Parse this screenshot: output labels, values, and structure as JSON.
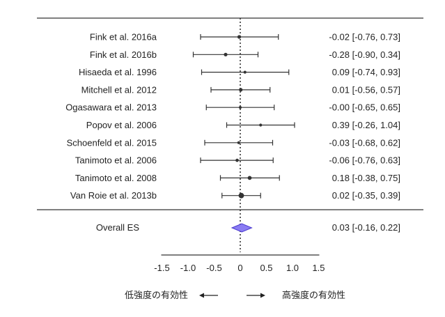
{
  "chart_data": {
    "type": "forest",
    "studies": [
      {
        "label": "Fink et al. 2016a",
        "es": -0.02,
        "lo": -0.76,
        "hi": 0.73,
        "ci_text": "-0.02 [-0.76, 0.73]",
        "weight": 1.0
      },
      {
        "label": "Fink et al. 2016b",
        "es": -0.28,
        "lo": -0.9,
        "hi": 0.34,
        "ci_text": "-0.28 [-0.90, 0.34]",
        "weight": 1.0
      },
      {
        "label": "Hisaeda et al. 1996",
        "es": 0.09,
        "lo": -0.74,
        "hi": 0.93,
        "ci_text": "0.09 [-0.74, 0.93]",
        "weight": 0.8
      },
      {
        "label": "Mitchell et al. 2012",
        "es": 0.01,
        "lo": -0.56,
        "hi": 0.57,
        "ci_text": "0.01 [-0.56, 0.57]",
        "weight": 1.0
      },
      {
        "label": "Ogasawara et al. 2013",
        "es": -0.0,
        "lo": -0.65,
        "hi": 0.65,
        "ci_text": "-0.00 [-0.65, 0.65]",
        "weight": 0.8
      },
      {
        "label": "Popov et al. 2006",
        "es": 0.39,
        "lo": -0.26,
        "hi": 1.04,
        "ci_text": "0.39 [-0.26, 1.04]",
        "weight": 0.8
      },
      {
        "label": "Schoenfeld et al. 2015",
        "es": -0.03,
        "lo": -0.68,
        "hi": 0.62,
        "ci_text": "-0.03 [-0.68, 0.62]",
        "weight": 0.8
      },
      {
        "label": "Tanimoto et al. 2006",
        "es": -0.06,
        "lo": -0.76,
        "hi": 0.63,
        "ci_text": "-0.06 [-0.76, 0.63]",
        "weight": 0.9
      },
      {
        "label": "Tanimoto et al. 2008",
        "es": 0.18,
        "lo": -0.38,
        "hi": 0.75,
        "ci_text": "0.18 [-0.38, 0.75]",
        "weight": 1.1
      },
      {
        "label": "Van Roie et al. 2013b",
        "es": 0.02,
        "lo": -0.35,
        "hi": 0.39,
        "ci_text": "0.02 [-0.35, 0.39]",
        "weight": 1.5
      }
    ],
    "overall": {
      "label": "Overall ES",
      "es": 0.03,
      "lo": -0.16,
      "hi": 0.22,
      "ci_text": "0.03 [-0.16, 0.22]"
    },
    "xlim": [
      -1.5,
      1.5
    ],
    "xticks": [
      -1.5,
      -1.0,
      -0.5,
      0,
      0.5,
      1.0,
      1.5
    ],
    "xtick_labels": [
      "-1.5",
      "-1.0",
      "-0.5",
      "0",
      "0.5",
      "1.0",
      "1.5"
    ],
    "reference_line": 0,
    "xlabel_left": "低強度の有効性",
    "xlabel_right": "高強度の有効性",
    "colors": {
      "text": "#222222",
      "line": "#333333",
      "point": "#333333",
      "diamond_fill": "#8a7cf2",
      "diamond_stroke": "#4a3ad0"
    }
  }
}
